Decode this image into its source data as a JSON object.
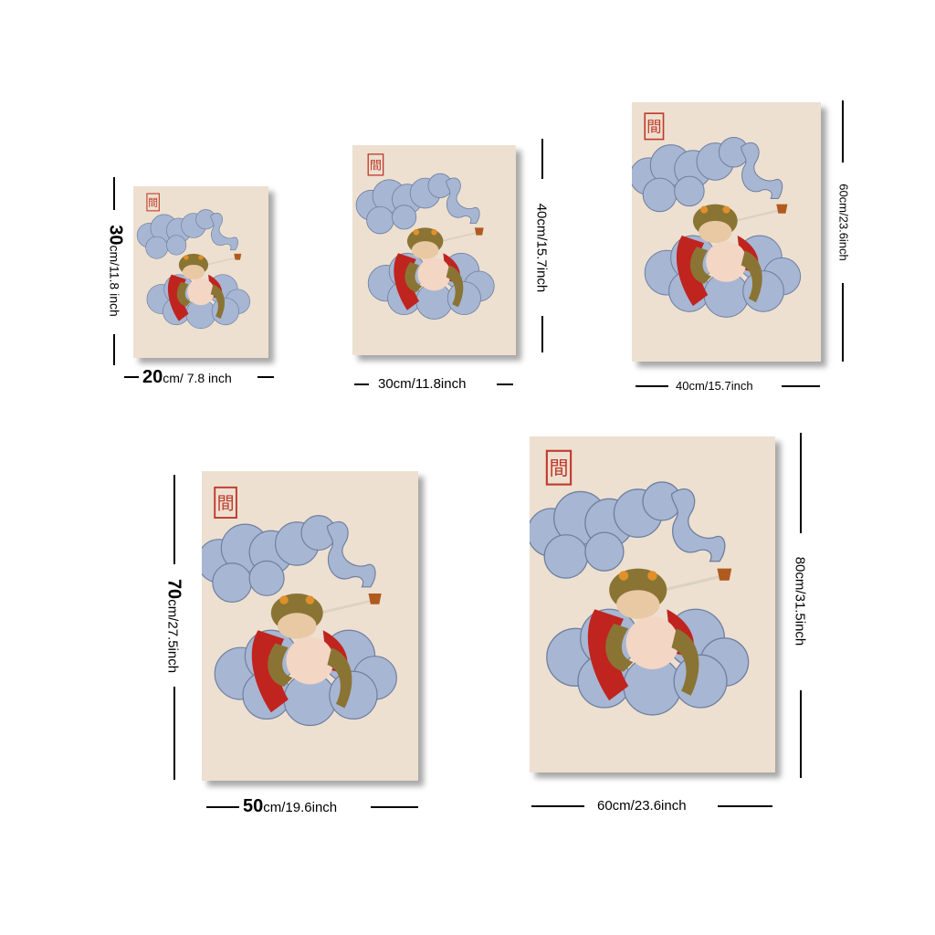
{
  "sizes": [
    {
      "id": "s20x30",
      "width_text": "20cm/ 7.8 inch",
      "width_num": "20",
      "width_rest": "cm/ 7.8 inch",
      "height_num": "30",
      "height_rest": "cm/11.8 inch"
    },
    {
      "id": "s30x40",
      "width_text": "30cm/11.8inch",
      "height_text": "40cm/15.7inch"
    },
    {
      "id": "s40x60",
      "width_text": "40cm/15.7inch",
      "height_text": "60cm/23.6inch"
    },
    {
      "id": "s50x70",
      "width_num": "50",
      "width_rest": "cm/19.6inch",
      "height_num": "70",
      "height_rest": "cm/27.5inch"
    },
    {
      "id": "s60x80",
      "width_text": "60cm/23.6inch",
      "height_text": "80cm/31.5inch"
    }
  ],
  "artwork": {
    "stamp_glyph": "間",
    "subject_icon": "toad-on-cloud-smoking-pipe-icon"
  },
  "colors": {
    "paper": "#ede0d0",
    "cloud": "#a7b6d3",
    "toad": "#8a7434",
    "robe": "#c0241f",
    "belly": "#f3d6c4",
    "stamp": "#c0392b"
  }
}
